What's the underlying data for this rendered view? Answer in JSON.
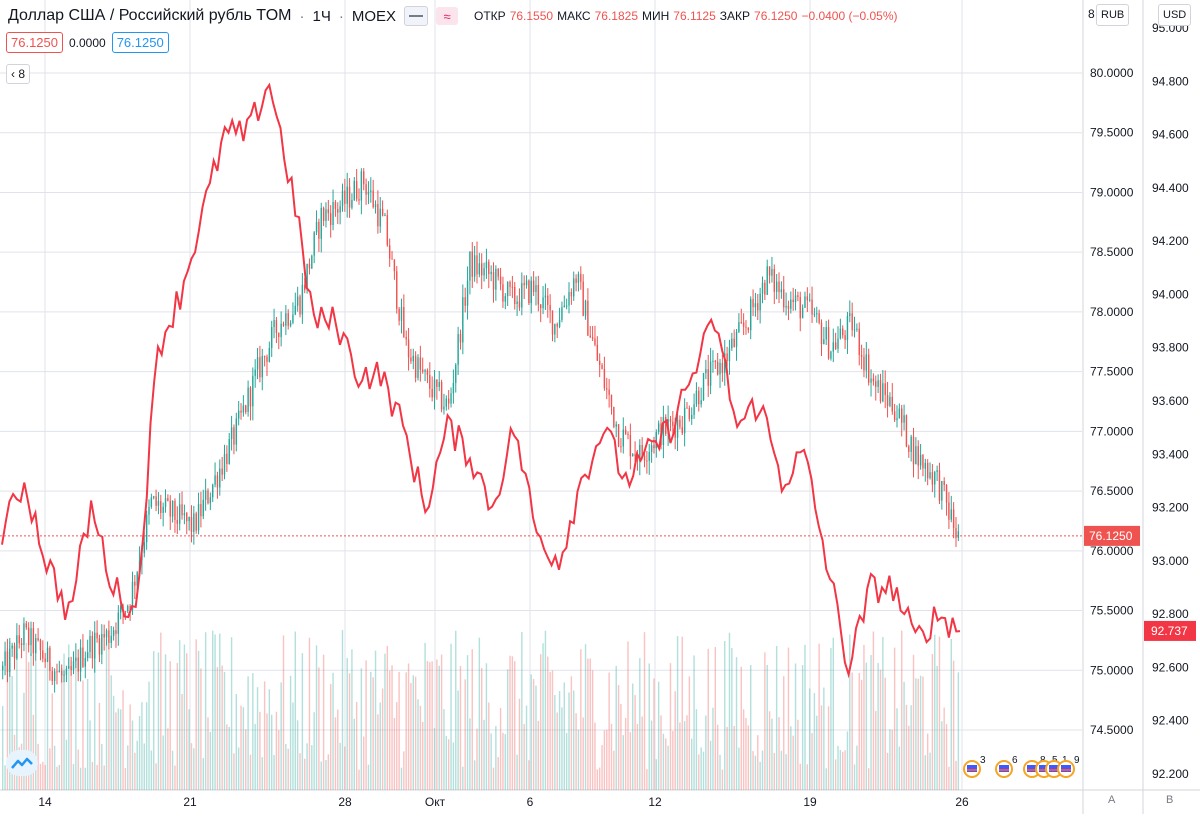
{
  "header": {
    "symbol": "Доллар США / Российский рубль TOM",
    "separator": "·",
    "interval": "1Ч",
    "exchange": "MOEX",
    "ohlc": [
      {
        "label": "ОТКР",
        "value": "76.1550"
      },
      {
        "label": "МАКС",
        "value": "76.1825"
      },
      {
        "label": "МИН",
        "value": "76.1125"
      },
      {
        "label": "ЗАКР",
        "value": "76.1250"
      },
      {
        "label": "",
        "value": "−0.0400 (−0.05%)"
      }
    ],
    "wave_icon": "≈"
  },
  "values_row": {
    "price": "76.1250",
    "change": "0.0000",
    "price2": "76.1250"
  },
  "indicator": {
    "collapse_icon": "‹",
    "count": "8"
  },
  "axes": {
    "left_unit": "RUB",
    "right_unit": "USD",
    "left_ticks": [
      "80.0000",
      "79.5000",
      "79.0000",
      "78.5000",
      "78.0000",
      "77.5000",
      "77.0000",
      "76.5000",
      "76.0000",
      "75.5000",
      "75.0000",
      "74.5000"
    ],
    "right_ticks": [
      "95.000",
      "94.800",
      "94.600",
      "94.400",
      "94.200",
      "94.000",
      "93.800",
      "93.600",
      "93.400",
      "93.200",
      "93.000",
      "92.800",
      "92.600",
      "92.400",
      "92.200"
    ],
    "x_ticks": [
      "14",
      "21",
      "28",
      "Окт",
      "6",
      "12",
      "19",
      "26"
    ],
    "last_price_label": "76.1250",
    "compare_price_label": "92.737",
    "scale_a": "A",
    "scale_b": "B",
    "edge_label": "8"
  },
  "events": [
    "3",
    "6",
    "8",
    "5",
    "1",
    "9"
  ],
  "colors": {
    "up": "#26a69a",
    "down": "#ef5350",
    "compare": "#f23645",
    "grid": "#e0e3eb",
    "accent": "#2196f3"
  },
  "chart_data": {
    "type": "candlestick",
    "symbol": "Доллар США / Российский рубль TOM",
    "interval": "1Ч",
    "x_labels": [
      "14",
      "21",
      "28",
      "Окт",
      "6",
      "12",
      "19",
      "26"
    ],
    "left_axis": {
      "unit": "RUB",
      "range": [
        74.2,
        80.2
      ]
    },
    "right_axis": {
      "unit": "USD",
      "range": [
        92.15,
        95.05
      ]
    },
    "last_close": 76.125,
    "compare_last": 92.737,
    "main_series_daily_close": [
      75.0,
      75.3,
      75.1,
      74.9,
      75.2,
      75.3,
      75.6,
      76.4,
      76.3,
      76.2,
      76.6,
      77.0,
      77.5,
      77.9,
      78.1,
      78.8,
      78.9,
      79.1,
      78.7,
      77.7,
      77.4,
      77.2,
      78.4,
      78.3,
      78.1,
      78.2,
      77.9,
      78.3,
      77.6,
      77.0,
      76.8,
      77.0,
      77.1,
      77.4,
      77.6,
      77.9,
      78.3,
      78.1,
      78.0,
      77.7,
      77.9,
      77.4,
      77.2,
      76.8,
      76.6,
      76.1
    ],
    "compare_series_daily_close": [
      93.1,
      93.3,
      93.0,
      92.8,
      93.2,
      92.9,
      92.8,
      93.8,
      94.0,
      94.3,
      94.6,
      94.6,
      94.8,
      94.4,
      93.9,
      93.9,
      93.7,
      93.7,
      93.5,
      93.2,
      93.5,
      93.4,
      93.2,
      93.5,
      93.1,
      93.0,
      93.3,
      93.5,
      93.3,
      93.4,
      93.5,
      93.7,
      93.9,
      93.5,
      93.6,
      93.3,
      93.4,
      93.0,
      92.6,
      92.9,
      92.9,
      92.7,
      92.8,
      92.74
    ],
    "compare_series_unit": "USD",
    "volume": "histogram at bottom",
    "grid": true
  }
}
